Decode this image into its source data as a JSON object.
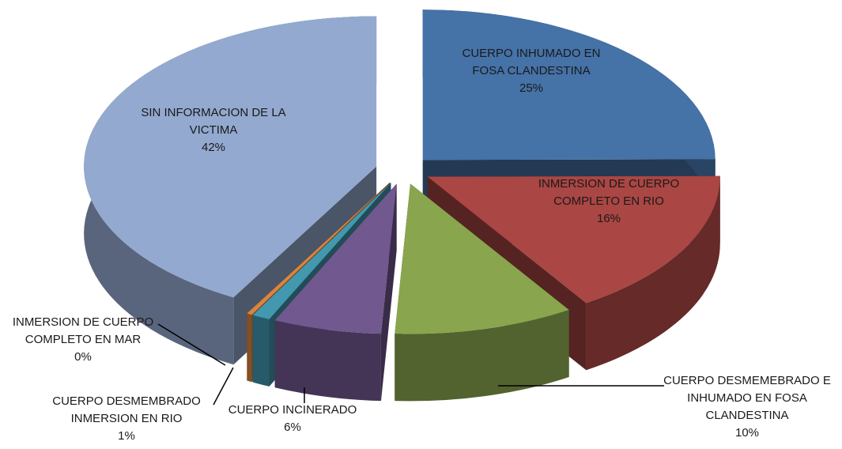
{
  "chart_data": {
    "type": "pie3d",
    "categories": [
      "CUERPO INHUMADO EN FOSA CLANDESTINA",
      "INMERSION DE CUERPO COMPLETO EN RIO",
      "CUERPO DESMEMEBRADO E INHUMADO EN FOSA CLANDESTINA",
      "CUERPO INCINERADO",
      "CUERPO DESMEMBRADO INMERSION EN RIO",
      "INMERSION DE CUERPO COMPLETO EN MAR",
      "SIN INFORMACION  DE LA VICTIMA"
    ],
    "values": [
      25,
      16,
      10,
      6,
      1,
      0.3,
      42
    ],
    "value_labels": [
      "25%",
      "16%",
      "10%",
      "6%",
      "1%",
      "0%",
      "42%"
    ],
    "colors": [
      "#4572a7",
      "#aa4643",
      "#89a54e",
      "#71588f",
      "#4198af",
      "#db843d",
      "#93a9cf"
    ]
  }
}
